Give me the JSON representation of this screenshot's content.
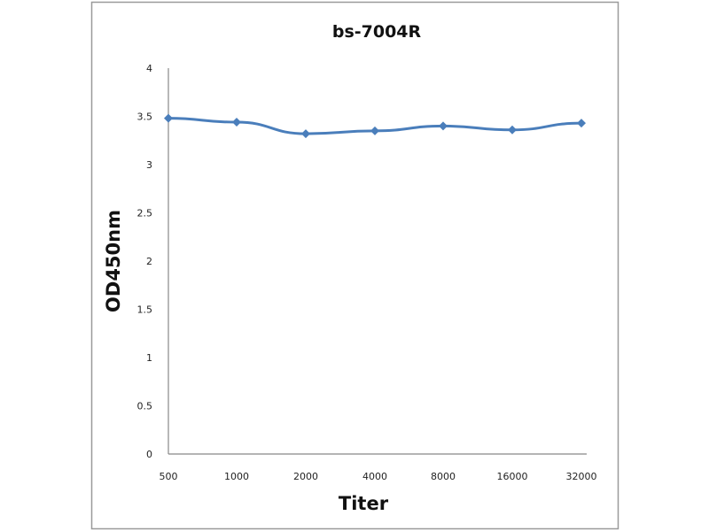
{
  "chart_data": {
    "type": "line",
    "title": "bs-7004R",
    "xlabel": "Titer",
    "ylabel": "OD450nm",
    "categories": [
      "500",
      "1000",
      "2000",
      "4000",
      "8000",
      "16000",
      "32000"
    ],
    "series": [
      {
        "values": [
          3.48,
          3.44,
          3.32,
          3.35,
          3.4,
          3.36,
          3.43
        ],
        "color": "#4a7ebb",
        "marker": "diamond"
      }
    ],
    "ylim": [
      0,
      4
    ],
    "yticks": [
      "0",
      "0.5",
      "1",
      "1.5",
      "2",
      "2.5",
      "3",
      "3.5",
      "4"
    ],
    "grid": false,
    "legend": "none"
  }
}
